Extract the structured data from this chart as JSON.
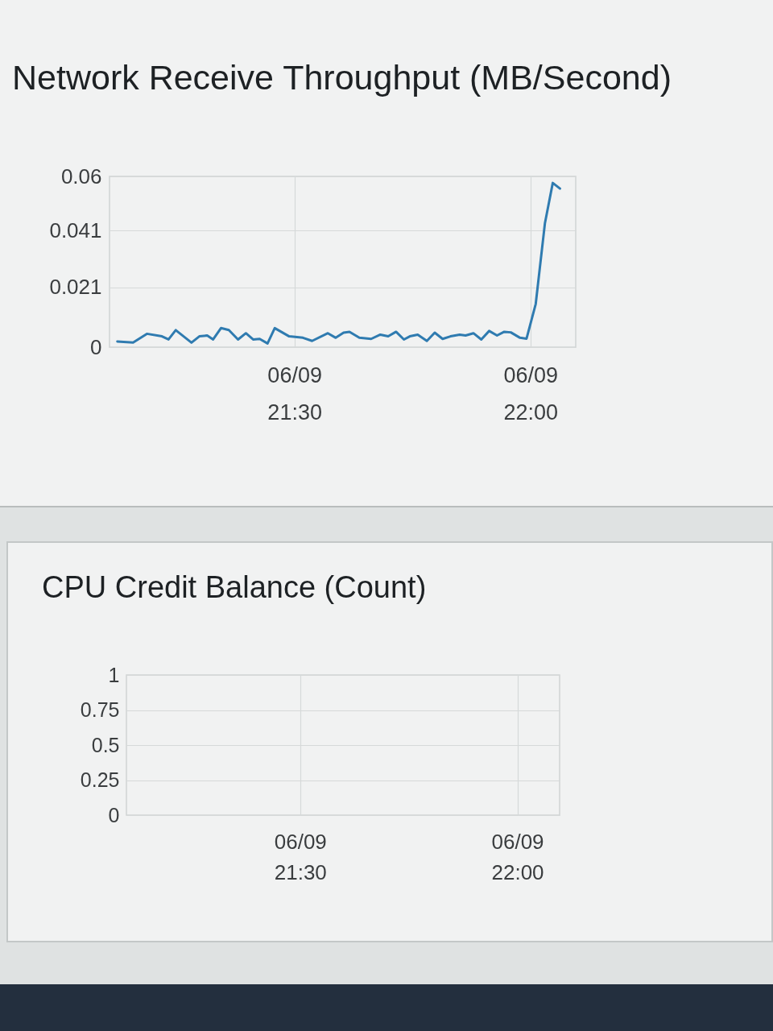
{
  "chart_data": [
    {
      "type": "line",
      "title": "Network Receive Throughput (MB/Second)",
      "x": [
        "--06-09T21:07:30",
        "--06-09T21:09:30",
        "--06-09T21:11:15",
        "--06-09T21:13:10",
        "--06-09T21:14:00",
        "--06-09T21:14:55",
        "--06-09T21:16:55",
        "--06-09T21:17:55",
        "--06-09T21:18:55",
        "--06-09T21:19:40",
        "--06-09T21:20:40",
        "--06-09T21:21:40",
        "--06-09T21:22:50",
        "--06-09T21:23:50",
        "--06-09T21:24:45",
        "--06-09T21:25:35",
        "--06-09T21:26:35",
        "--06-09T21:27:30",
        "--06-09T21:29:20",
        "--06-09T21:31:05",
        "--06-09T21:32:15",
        "--06-09T21:34:15",
        "--06-09T21:35:15",
        "--06-09T21:36:15",
        "--06-09T21:37:00",
        "--06-09T21:38:15",
        "--06-09T21:39:45",
        "--06-09T21:40:55",
        "--06-09T21:41:55",
        "--06-09T21:42:55",
        "--06-09T21:43:55",
        "--06-09T21:44:40",
        "--06-09T21:45:40",
        "--06-09T21:46:50",
        "--06-09T21:47:50",
        "--06-09T21:48:50",
        "--06-09T21:49:50",
        "--06-09T21:51:00",
        "--06-09T21:51:45",
        "--06-09T21:52:45",
        "--06-09T21:53:45",
        "--06-09T21:54:45",
        "--06-09T21:55:45",
        "--06-09T21:56:40",
        "--06-09T21:57:30",
        "--06-09T21:58:40",
        "--06-09T21:59:30",
        "--06-09T22:00:40",
        "--06-09T22:01:50",
        "--06-09T22:02:50",
        "--06-09T22:03:45"
      ],
      "values": [
        0.002,
        0.0016,
        0.0047,
        0.0038,
        0.0027,
        0.006,
        0.0016,
        0.0038,
        0.0041,
        0.0027,
        0.0067,
        0.006,
        0.0027,
        0.0049,
        0.0027,
        0.0029,
        0.0013,
        0.0067,
        0.0038,
        0.0033,
        0.0022,
        0.0049,
        0.0033,
        0.0051,
        0.0054,
        0.0033,
        0.0029,
        0.0044,
        0.0038,
        0.0054,
        0.0027,
        0.0038,
        0.0044,
        0.0022,
        0.0051,
        0.0029,
        0.0038,
        0.0044,
        0.0041,
        0.0049,
        0.0027,
        0.0057,
        0.0041,
        0.0054,
        0.0052,
        0.0033,
        0.003,
        0.0152,
        0.0435,
        0.0577,
        0.0557
      ],
      "color": "#2f7bb0",
      "xlim": [
        "--06-09T21:06:30",
        "--06-09T22:05:45"
      ],
      "xticks": [
        {
          "value": "--06-09T21:30",
          "label": "06/09\n21:30"
        },
        {
          "value": "--06-09T22:00",
          "label": "06/09\n22:00"
        }
      ],
      "ylim": [
        0,
        0.06
      ],
      "yticks": [
        0,
        0.021,
        0.041,
        0.06
      ],
      "grid": true
    },
    {
      "type": "line",
      "title": "CPU Credit Balance (Count)",
      "xlim": [
        "--06-09T21:06:00",
        "--06-09T22:05:50"
      ],
      "xticks": [
        {
          "value": "--06-09T21:30",
          "label": "06/09\n21:30"
        },
        {
          "value": "--06-09T22:00",
          "label": "06/09\n22:00"
        }
      ],
      "ylim": [
        0,
        1
      ],
      "yticks": [
        0,
        0.25,
        0.5,
        0.75,
        1
      ],
      "grid": true
    }
  ]
}
